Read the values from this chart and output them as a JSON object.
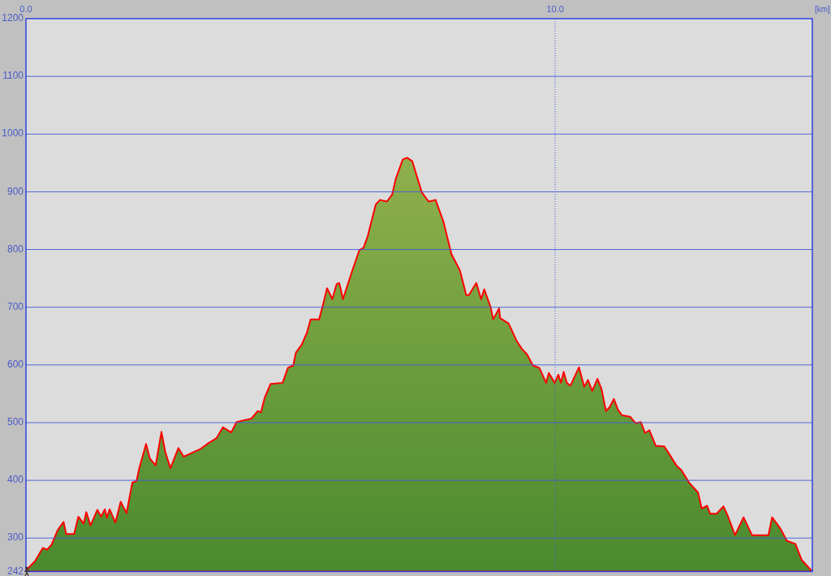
{
  "chart_data": {
    "type": "area",
    "xlabel": "[km]",
    "xlim": [
      0,
      14.86
    ],
    "ylim": [
      242,
      1200
    ],
    "xticks": [
      {
        "value": 0,
        "label": "0.0"
      },
      {
        "value": 10,
        "label": "10.0"
      }
    ],
    "yticks": [
      242,
      300,
      400,
      500,
      600,
      700,
      800,
      900,
      1000,
      1100,
      1200
    ],
    "grid": "y",
    "ref_lines": [
      {
        "axis": "x",
        "value": 10,
        "color": "#3f5ad8",
        "line_style": "dotted"
      }
    ],
    "x": [
      0,
      0.17,
      0.32,
      0.4,
      0.48,
      0.6,
      0.71,
      0.76,
      0.91,
      0.99,
      1.09,
      1.14,
      1.22,
      1.35,
      1.42,
      1.49,
      1.53,
      1.58,
      1.69,
      1.79,
      1.9,
      2.01,
      2.09,
      2.14,
      2.27,
      2.34,
      2.45,
      2.56,
      2.63,
      2.73,
      2.88,
      2.98,
      3.29,
      3.44,
      3.6,
      3.72,
      3.88,
      3.98,
      4.11,
      4.26,
      4.38,
      4.44,
      4.51,
      4.62,
      4.85,
      4.95,
      5.05,
      5.1,
      5.21,
      5.31,
      5.38,
      5.54,
      5.61,
      5.69,
      5.79,
      5.87,
      5.92,
      5.99,
      6.15,
      6.3,
      6.38,
      6.46,
      6.61,
      6.69,
      6.82,
      6.92,
      6.99,
      7.12,
      7.2,
      7.3,
      7.48,
      7.61,
      7.74,
      7.89,
      8.04,
      8.2,
      8.32,
      8.37,
      8.51,
      8.6,
      8.66,
      8.78,
      8.83,
      8.94,
      8.96,
      9.12,
      9.27,
      9.37,
      9.47,
      9.58,
      9.7,
      9.83,
      9.88,
      9.99,
      10.06,
      10.11,
      10.16,
      10.22,
      10.29,
      10.45,
      10.55,
      10.62,
      10.7,
      10.8,
      10.88,
      10.96,
      11.03,
      11.11,
      11.19,
      11.26,
      11.42,
      11.52,
      11.62,
      11.7,
      11.78,
      11.9,
      12.06,
      12.16,
      12.29,
      12.39,
      12.54,
      12.7,
      12.77,
      12.87,
      12.93,
      13.05,
      13.18,
      13.26,
      13.4,
      13.56,
      13.72,
      14.03,
      14.1,
      14.26,
      14.38,
      14.54,
      14.59,
      14.66,
      14.84
    ],
    "color": "#ff0000",
    "values": [
      244,
      260,
      283,
      280,
      288,
      314,
      328,
      307,
      307,
      337,
      325,
      345,
      322,
      349,
      337,
      350,
      335,
      350,
      327,
      363,
      343,
      396,
      399,
      421,
      463,
      438,
      426,
      484,
      450,
      421,
      456,
      441,
      454,
      464,
      473,
      492,
      483,
      501,
      504,
      507,
      520,
      518,
      543,
      567,
      569,
      595,
      599,
      621,
      635,
      656,
      679,
      679,
      703,
      733,
      714,
      740,
      742,
      714,
      759,
      799,
      803,
      824,
      878,
      886,
      883,
      895,
      923,
      956,
      959,
      953,
      899,
      883,
      886,
      848,
      792,
      764,
      721,
      721,
      742,
      714,
      731,
      700,
      679,
      698,
      681,
      672,
      642,
      628,
      618,
      599,
      595,
      569,
      586,
      569,
      583,
      569,
      588,
      569,
      564,
      596,
      562,
      574,
      555,
      576,
      557,
      520,
      527,
      541,
      522,
      513,
      510,
      499,
      501,
      482,
      487,
      460,
      459,
      445,
      426,
      417,
      395,
      379,
      351,
      356,
      342,
      342,
      355,
      339,
      305,
      336,
      305,
      305,
      336,
      316,
      295,
      290,
      278,
      262,
      244
    ]
  }
}
